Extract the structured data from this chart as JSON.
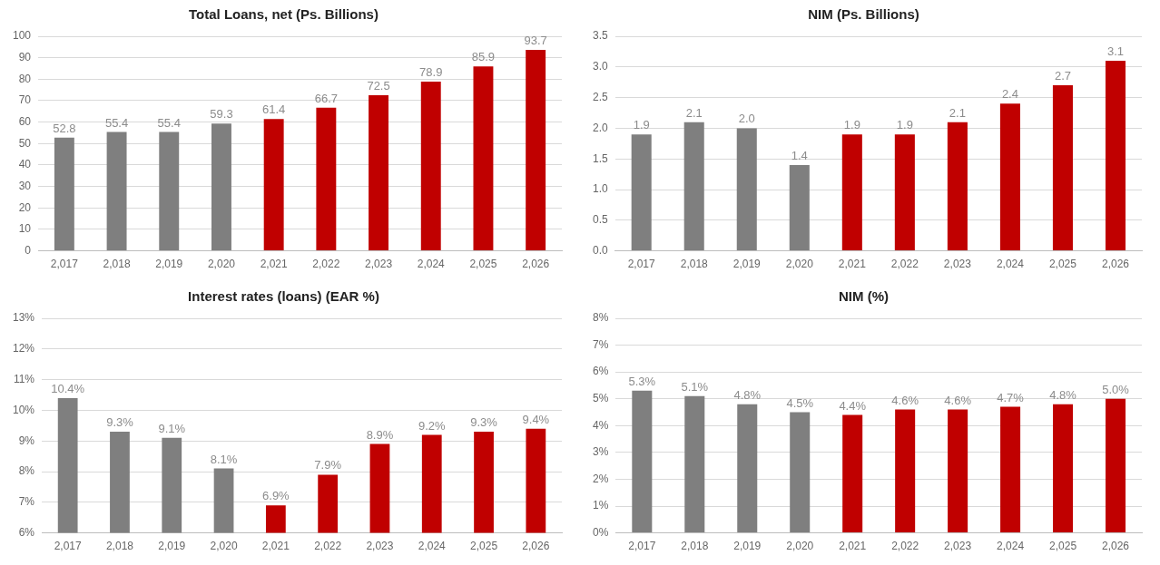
{
  "chart_data": [
    {
      "type": "bar",
      "title": "Total Loans, net (Ps. Billions)",
      "categories": [
        "2,017",
        "2,018",
        "2,019",
        "2,020",
        "2,021",
        "2,022",
        "2,023",
        "2,024",
        "2,025",
        "2,026"
      ],
      "values": [
        52.8,
        55.4,
        55.4,
        59.3,
        61.4,
        66.7,
        72.5,
        78.9,
        85.9,
        93.7
      ],
      "colors": [
        "#7f7f7f",
        "#7f7f7f",
        "#7f7f7f",
        "#7f7f7f",
        "#c00000",
        "#c00000",
        "#c00000",
        "#c00000",
        "#c00000",
        "#c00000"
      ],
      "data_labels": true,
      "ylim": [
        0,
        100
      ],
      "yticks": [
        0,
        10,
        20,
        30,
        40,
        50,
        60,
        70,
        80,
        90,
        100
      ],
      "grid": "y",
      "legend": false
    },
    {
      "type": "bar",
      "title": "NIM (Ps. Billions)",
      "categories": [
        "2,017",
        "2,018",
        "2,019",
        "2,020",
        "2,021",
        "2,022",
        "2,023",
        "2,024",
        "2,025",
        "2,026"
      ],
      "values": [
        1.9,
        2.1,
        2.0,
        1.4,
        1.9,
        1.9,
        2.1,
        2.4,
        2.7,
        3.1
      ],
      "value_labels": [
        "1.9",
        "2.1",
        "2.0",
        "1.4",
        "1.9",
        "1.9",
        "2.1",
        "2.4",
        "2.7",
        "3.1"
      ],
      "colors": [
        "#7f7f7f",
        "#7f7f7f",
        "#7f7f7f",
        "#7f7f7f",
        "#c00000",
        "#c00000",
        "#c00000",
        "#c00000",
        "#c00000",
        "#c00000"
      ],
      "ylim": [
        0,
        3.5
      ],
      "yticks": [
        {
          "value": 0,
          "label": "0.0"
        },
        {
          "value": 0.5,
          "label": "0.5"
        },
        {
          "value": 1,
          "label": "1.0"
        },
        {
          "value": 1.5,
          "label": "1.5"
        },
        {
          "value": 2,
          "label": "2.0"
        },
        {
          "value": 2.5,
          "label": "2.5"
        },
        {
          "value": 3,
          "label": "3.0"
        },
        {
          "value": 3.5,
          "label": "3.5"
        }
      ],
      "grid": "y",
      "legend": false
    },
    {
      "type": "bar",
      "title": "Interest rates (loans) (EAR %)",
      "categories": [
        "2,017",
        "2,018",
        "2,019",
        "2,020",
        "2,021",
        "2,022",
        "2,023",
        "2,024",
        "2,025",
        "2,026"
      ],
      "values": [
        10.4,
        9.3,
        9.1,
        8.1,
        6.9,
        7.9,
        8.9,
        9.2,
        9.3,
        9.4
      ],
      "value_labels": [
        "10.4%",
        "9.3%",
        "9.1%",
        "8.1%",
        "6.9%",
        "7.9%",
        "8.9%",
        "9.2%",
        "9.3%",
        "9.4%"
      ],
      "colors": [
        "#7f7f7f",
        "#7f7f7f",
        "#7f7f7f",
        "#7f7f7f",
        "#c00000",
        "#c00000",
        "#c00000",
        "#c00000",
        "#c00000",
        "#c00000"
      ],
      "ylim": [
        6,
        13
      ],
      "yticks": [
        {
          "value": 6,
          "label": "6%"
        },
        {
          "value": 7,
          "label": "7%"
        },
        {
          "value": 8,
          "label": "8%"
        },
        {
          "value": 9,
          "label": "9%"
        },
        {
          "value": 10,
          "label": "10%"
        },
        {
          "value": 11,
          "label": "11%"
        },
        {
          "value": 12,
          "label": "12%"
        },
        {
          "value": 13,
          "label": "13%"
        }
      ],
      "grid": "y",
      "legend": false
    },
    {
      "type": "bar",
      "title": "NIM (%)",
      "categories": [
        "2,017",
        "2,018",
        "2,019",
        "2,020",
        "2,021",
        "2,022",
        "2,023",
        "2,024",
        "2,025",
        "2,026"
      ],
      "values": [
        5.3,
        5.1,
        4.8,
        4.5,
        4.4,
        4.6,
        4.6,
        4.7,
        4.8,
        5.0
      ],
      "value_labels": [
        "5.3%",
        "5.1%",
        "4.8%",
        "4.5%",
        "4.4%",
        "4.6%",
        "4.6%",
        "4.7%",
        "4.8%",
        "5.0%"
      ],
      "colors": [
        "#7f7f7f",
        "#7f7f7f",
        "#7f7f7f",
        "#7f7f7f",
        "#c00000",
        "#c00000",
        "#c00000",
        "#c00000",
        "#c00000",
        "#c00000"
      ],
      "ylim": [
        0,
        8
      ],
      "yticks": [
        {
          "value": 0,
          "label": "0%"
        },
        {
          "value": 1,
          "label": "1%"
        },
        {
          "value": 2,
          "label": "2%"
        },
        {
          "value": 3,
          "label": "3%"
        },
        {
          "value": 4,
          "label": "4%"
        },
        {
          "value": 5,
          "label": "5%"
        },
        {
          "value": 6,
          "label": "6%"
        },
        {
          "value": 7,
          "label": "7%"
        },
        {
          "value": 8,
          "label": "8%"
        }
      ],
      "grid": "y",
      "legend": false
    }
  ]
}
